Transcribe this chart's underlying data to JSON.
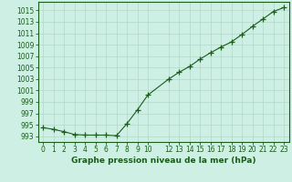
{
  "x": [
    0,
    1,
    2,
    3,
    4,
    5,
    6,
    7,
    8,
    9,
    10,
    12,
    13,
    14,
    15,
    16,
    17,
    18,
    19,
    20,
    21,
    22,
    23
  ],
  "y": [
    994.5,
    994.2,
    993.8,
    993.3,
    993.2,
    993.2,
    993.2,
    993.1,
    995.2,
    997.6,
    1000.2,
    1003.0,
    1004.2,
    1005.2,
    1006.5,
    1007.6,
    1008.6,
    1009.5,
    1010.8,
    1012.2,
    1013.5,
    1014.8,
    1015.5
  ],
  "line_color": "#1a5c1a",
  "marker_color": "#1a5c1a",
  "bg_color": "#cef0e4",
  "grid_color": "#b0d8c8",
  "xlabel": "Graphe pression niveau de la mer (hPa)",
  "xticks": [
    0,
    1,
    2,
    3,
    4,
    5,
    6,
    7,
    8,
    9,
    10,
    12,
    13,
    14,
    15,
    16,
    17,
    18,
    19,
    20,
    21,
    22,
    23
  ],
  "xtick_labels": [
    "0",
    "1",
    "2",
    "3",
    "4",
    "5",
    "6",
    "7",
    "8",
    "9",
    "10",
    "12",
    "13",
    "14",
    "15",
    "16",
    "17",
    "18",
    "19",
    "20",
    "21",
    "22",
    "23"
  ],
  "yticks": [
    993,
    995,
    997,
    999,
    1001,
    1003,
    1005,
    1007,
    1009,
    1011,
    1013,
    1015
  ],
  "ylim": [
    992.0,
    1016.5
  ],
  "xlim": [
    -0.5,
    23.5
  ],
  "tick_fontsize": 5.5,
  "xlabel_fontsize": 6.5
}
